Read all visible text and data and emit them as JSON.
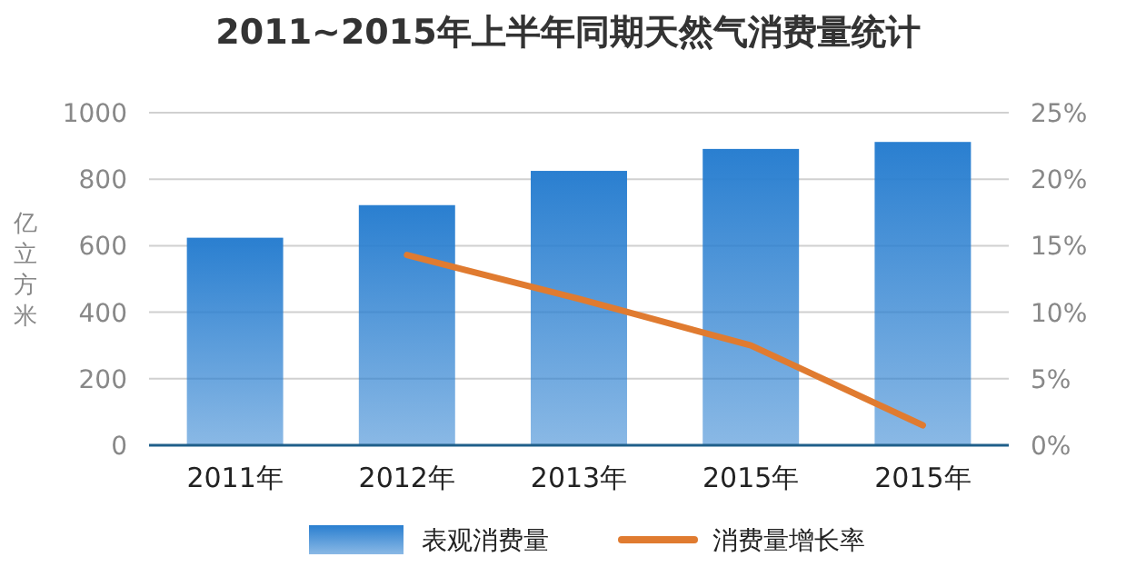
{
  "chart_data": {
    "type": "bar",
    "title": "2011~2015年上半年同期天然气消费量统计",
    "ylabel": "亿立方米",
    "categories": [
      "2011年",
      "2012年",
      "2013年",
      "2015年",
      "2015年"
    ],
    "series": [
      {
        "name": "表观消费量",
        "color": "#2a7fd0",
        "values": [
          624,
          722,
          825,
          891,
          912
        ]
      },
      {
        "name": "消费量增长率",
        "type": "line",
        "axis": "y2",
        "color": "#e07b30",
        "values": [
          null,
          14.3,
          11.0,
          7.5,
          1.5
        ]
      }
    ],
    "ylim": [
      0,
      1000
    ],
    "yticks": [
      0,
      200,
      400,
      600,
      800,
      1000
    ],
    "y2lim": [
      0,
      25
    ],
    "y2ticks": [
      {
        "value": 0,
        "label": "0%"
      },
      {
        "value": 5,
        "label": "5%"
      },
      {
        "value": 10,
        "label": "10%"
      },
      {
        "value": 15,
        "label": "15%"
      },
      {
        "value": 20,
        "label": "20%"
      },
      {
        "value": 25,
        "label": "25%"
      }
    ],
    "grid": "y",
    "legend": "bottom",
    "marker": "none",
    "line_style": "solid"
  }
}
